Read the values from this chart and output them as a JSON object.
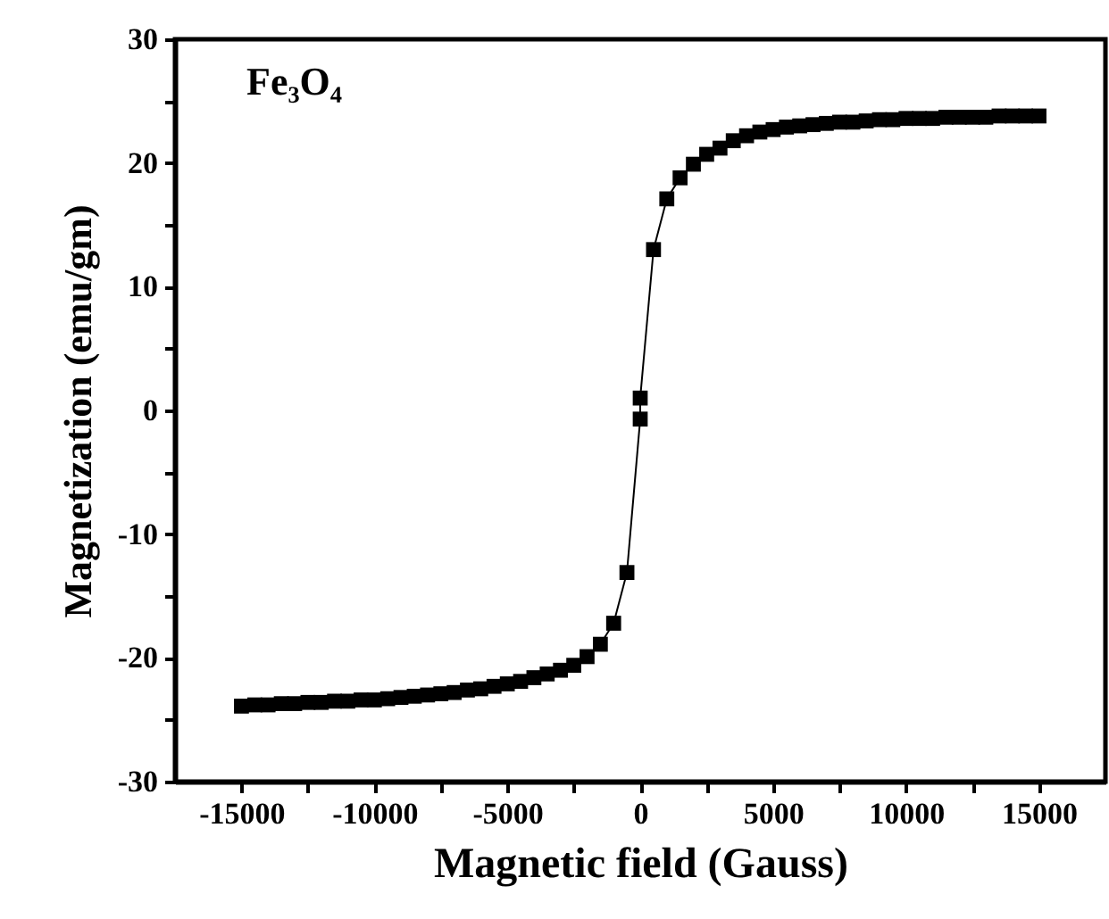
{
  "chart_data": {
    "type": "line",
    "xlabel": "Magnetic field (Gauss)",
    "ylabel": "Magnetization (emu/gm)",
    "annotations": [
      "Fe₃O₄"
    ],
    "marker": "square",
    "line_style": "solid",
    "legend": false,
    "grid": false,
    "xlim": [
      -17500,
      17500
    ],
    "xticks": [
      -15000,
      {
        "value": -12500,
        "label": null
      },
      -10000,
      {
        "value": -7500,
        "label": null
      },
      -5000,
      {
        "value": -2500,
        "label": null
      },
      0,
      {
        "value": 2500,
        "label": null
      },
      5000,
      {
        "value": 7500,
        "label": null
      },
      10000,
      {
        "value": 12500,
        "label": null
      },
      15000
    ],
    "ylim": [
      -30,
      30
    ],
    "yticks": [
      -30,
      {
        "value": -25,
        "label": null
      },
      -20,
      {
        "value": -15,
        "label": null
      },
      -10,
      {
        "value": -5,
        "label": null
      },
      0,
      {
        "value": 5,
        "label": null
      },
      10,
      {
        "value": 15,
        "label": null
      },
      20,
      {
        "value": 25,
        "label": null
      },
      30
    ],
    "x": [
      -15000,
      -14500,
      -14000,
      -13500,
      -13000,
      -12500,
      -12000,
      -11500,
      -11000,
      -10500,
      -10000,
      -9500,
      -9000,
      -8500,
      -8000,
      -7500,
      -7000,
      -6500,
      -6000,
      -5500,
      -5000,
      -4500,
      -4000,
      -3500,
      -3000,
      -2500,
      -2000,
      -1500,
      -1000,
      -500,
      0,
      0,
      500,
      1000,
      1500,
      2000,
      2500,
      3000,
      3500,
      4000,
      4500,
      5000,
      5500,
      6000,
      6500,
      7000,
      7500,
      8000,
      8500,
      9000,
      9500,
      10000,
      10500,
      11000,
      11500,
      12000,
      12500,
      13000,
      13500,
      14000,
      14500,
      15000
    ],
    "series": [
      {
        "color": "#000000",
        "values": [
          -23.9,
          -23.8,
          -23.8,
          -23.7,
          -23.7,
          -23.6,
          -23.6,
          -23.5,
          -23.5,
          -23.4,
          -23.4,
          -23.3,
          -23.2,
          -23.1,
          -23.0,
          -22.9,
          -22.8,
          -22.6,
          -22.5,
          -22.3,
          -22.1,
          -21.9,
          -21.6,
          -21.3,
          -21.0,
          -20.6,
          -19.9,
          -18.9,
          -17.2,
          -13.1,
          -0.7,
          1.0,
          13.0,
          17.1,
          18.8,
          19.9,
          20.7,
          21.2,
          21.8,
          22.2,
          22.5,
          22.7,
          22.9,
          23.0,
          23.1,
          23.2,
          23.3,
          23.3,
          23.4,
          23.5,
          23.5,
          23.6,
          23.6,
          23.6,
          23.7,
          23.7,
          23.7,
          23.7,
          23.8,
          23.8,
          23.8,
          23.8
        ]
      }
    ]
  }
}
